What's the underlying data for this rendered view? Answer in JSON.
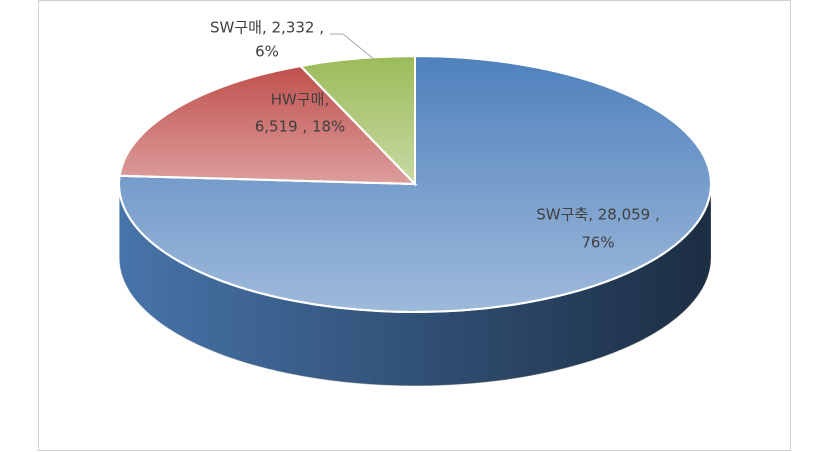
{
  "chart_data": {
    "type": "pie3d",
    "categories": [
      "SW구축",
      "HW구매",
      "SW구매"
    ],
    "values": [
      28059,
      6519,
      2332
    ],
    "value_labels": [
      "28,059",
      "6,519",
      "2,332"
    ],
    "data_labels": [
      [
        "SW구축, 28,059 ,",
        "76%"
      ],
      [
        "HW구매,",
        "6,519 , 18%"
      ],
      [
        "SW구매, 2,332 ,",
        "6%"
      ]
    ],
    "colors": [
      "#4f81bd",
      "#c0504d",
      "#9bbb59"
    ]
  }
}
